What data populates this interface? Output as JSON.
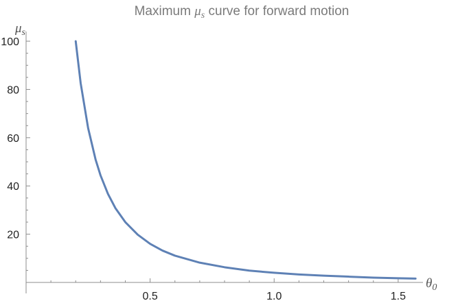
{
  "chart_data": {
    "type": "line",
    "title": {
      "prefix": "Maximum ",
      "symbol": "μ",
      "symbol_sub": "s",
      "suffix": " curve for forward motion"
    },
    "xlabel": {
      "symbol": "θ",
      "sub": "0"
    },
    "ylabel": {
      "symbol": "μ",
      "sub": "s"
    },
    "xlim": [
      0,
      1.6
    ],
    "ylim": [
      0,
      104
    ],
    "x_ticks": [
      {
        "value": 0.5,
        "label": "0.5"
      },
      {
        "value": 1.0,
        "label": "1.0"
      },
      {
        "value": 1.5,
        "label": "1.5"
      }
    ],
    "y_ticks": [
      {
        "value": 20,
        "label": "20"
      },
      {
        "value": 40,
        "label": "40"
      },
      {
        "value": 60,
        "label": "60"
      },
      {
        "value": 80,
        "label": "80"
      },
      {
        "value": 100,
        "label": "100"
      }
    ],
    "grid": false,
    "series": [
      {
        "color": "#5e81b5",
        "x": [
          0.2,
          0.22,
          0.25,
          0.28,
          0.3,
          0.33,
          0.36,
          0.4,
          0.45,
          0.5,
          0.55,
          0.6,
          0.7,
          0.8,
          0.9,
          1.0,
          1.1,
          1.2,
          1.3,
          1.4,
          1.5,
          1.57
        ],
        "y": [
          100,
          82.6,
          64.0,
          51.0,
          44.4,
          36.7,
          30.8,
          25.0,
          19.8,
          16.0,
          13.2,
          11.1,
          8.2,
          6.3,
          4.9,
          4.0,
          3.3,
          2.8,
          2.4,
          2.0,
          1.75,
          1.6
        ]
      }
    ]
  }
}
